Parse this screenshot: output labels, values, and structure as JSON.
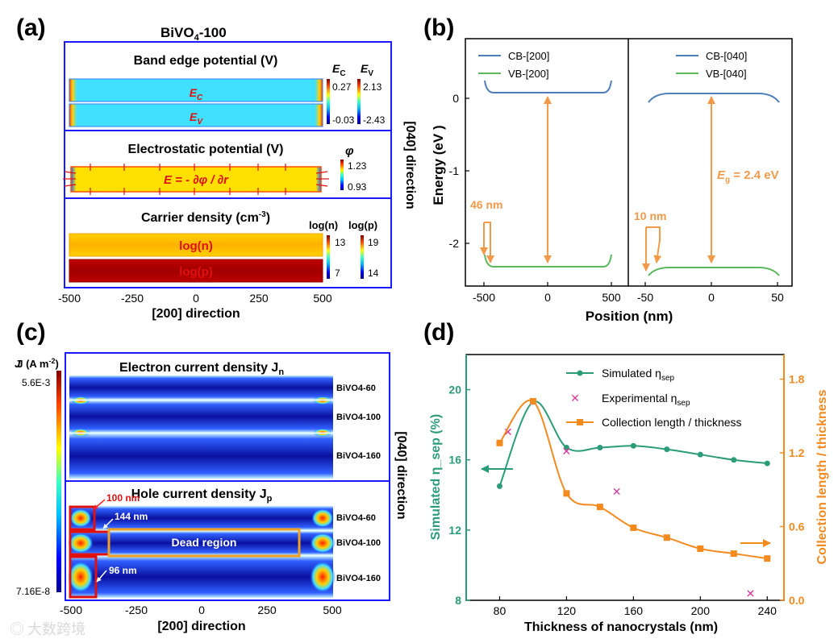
{
  "panel_a": {
    "letter": "(a)",
    "title": "BiVO",
    "title_sub": "4",
    "title_tail": "-100",
    "band_title": "Band edge potential (V)",
    "ec_label": "E",
    "ec_sub": "C",
    "ev_label": "E",
    "ev_sub": "V",
    "ec_max": "0.27",
    "ec_min": "-0.03",
    "ev_max": "2.13",
    "ev_min": "-2.43",
    "electro_title": "Electrostatic potential (V)",
    "phi_symbol": "φ",
    "phi_max": "1.23",
    "phi_min": "0.93",
    "field_eq": "E = - ∂φ / ∂r",
    "carrier_title_main": "Carrier density (cm",
    "carrier_title_sup": "-3",
    "carrier_title_end": ")",
    "logn_label": "log(n)",
    "logp_label": "log(p)",
    "logn_max": "13",
    "logn_min": "7",
    "logp_max": "19",
    "logp_min": "14",
    "bar_logn": "log(n)",
    "bar_logp": "log(p)",
    "xticks": [
      "-500",
      "-250",
      "0",
      "250",
      "500"
    ],
    "xlabel": "[200] direction",
    "ylabel": "[040] direction"
  },
  "panel_b": {
    "letter": "(b)",
    "ylabel": "Energy (eV )",
    "xlabel": "Position (nm)",
    "legend_left": [
      "CB-[200]",
      "VB-[200]"
    ],
    "legend_right": [
      "CB-[040]",
      "VB-[040]"
    ],
    "yticks": [
      "0",
      "-1",
      "-2"
    ],
    "xticks_left": [
      "-500",
      "0",
      "500"
    ],
    "xticks_right": [
      "-50",
      "0",
      "50"
    ],
    "note_left": "46 nm",
    "note_right": "10 nm",
    "eg_label": "E",
    "eg_sub": "g",
    "eg_value": " = 2.4 eV",
    "colors": {
      "cb": "#4e7fb8",
      "vb": "#5bb85c",
      "arrow": "#f29a4a"
    }
  },
  "panel_c": {
    "letter": "(c)",
    "colorbar_title": "J (A m",
    "colorbar_sup": "-2",
    "colorbar_end": ")",
    "colorbar_max": "5.6E-3",
    "colorbar_min": "7.16E-8",
    "electron_title": "Electron current density J",
    "electron_sub": "n",
    "hole_title": "Hole current density J",
    "hole_sub": "p",
    "samples": [
      "BiVO4-60",
      "BiVO4-100",
      "BiVO4-160"
    ],
    "dead_region": "Dead region",
    "notes": [
      "100 nm",
      "144 nm",
      "96 nm"
    ],
    "xticks": [
      "-500",
      "-250",
      "0",
      "250",
      "500"
    ],
    "xlabel": "[200] direction",
    "ylabel": "[040] direction"
  },
  "panel_d_text": {
    "letter": "(d)",
    "watermark": "大数跨境"
  },
  "chart_data": {
    "type": "line",
    "title": "",
    "xlabel": "Thickness of nanocrystals (nm)",
    "ylabel": "Simulated η_sep (%)",
    "y2label": "Collection length / thickness",
    "xlim": [
      60,
      250
    ],
    "ylim": [
      8,
      22
    ],
    "y2lim": [
      0,
      2.0
    ],
    "xticks": [
      80,
      120,
      160,
      200,
      240
    ],
    "yticks": [
      8,
      12,
      16,
      20
    ],
    "y2ticks": [
      0.0,
      0.6,
      1.2,
      1.8
    ],
    "series": [
      {
        "name": "Simulated η_sep",
        "axis": "left",
        "color": "#2a9d78",
        "x": [
          80,
          100,
          120,
          140,
          160,
          180,
          200,
          220,
          240
        ],
        "y": [
          14.5,
          19.3,
          16.7,
          16.7,
          16.8,
          16.6,
          16.3,
          16.0,
          15.8
        ]
      },
      {
        "name": "Experimental η_sep",
        "axis": "left",
        "color": "#d6389a",
        "marker": "x",
        "x": [
          85,
          100,
          120,
          150,
          230
        ],
        "y": [
          17.6,
          19.3,
          16.5,
          14.2,
          8.4
        ]
      },
      {
        "name": "Collection length / thickness",
        "axis": "right",
        "color": "#f28a1e",
        "x": [
          80,
          100,
          120,
          140,
          160,
          180,
          200,
          220,
          240
        ],
        "y": [
          1.28,
          1.62,
          0.87,
          0.76,
          0.59,
          0.51,
          0.42,
          0.38,
          0.34
        ]
      }
    ],
    "legend": [
      "Simulated η",
      "Experimental η",
      "Collection length / thickness"
    ],
    "legend_sub": "sep"
  }
}
